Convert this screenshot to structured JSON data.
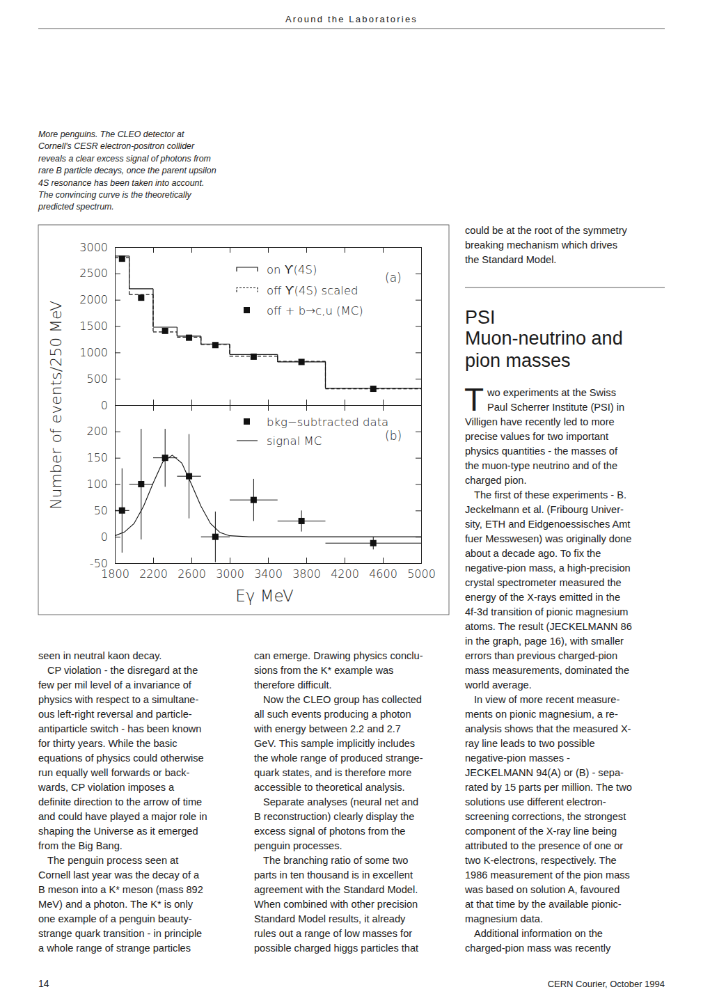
{
  "header": {
    "title": "Around the Laboratories"
  },
  "caption": [
    "More penguins. The CLEO detector at",
    "Cornell's CESR electron-positron collider",
    "reveals a clear excess signal of photons from",
    "rare B particle decays, once the parent upsilon",
    "4S resonance has been taken into account.",
    "The convincing curve is the theoretically",
    "predicted spectrum."
  ],
  "chart_data": [
    {
      "type": "line",
      "bins": [
        1800,
        1950,
        2200,
        2450,
        2700,
        3000,
        3500,
        4000,
        5000
      ],
      "xlim": [
        1800,
        5000
      ],
      "xticks": [
        1800,
        2200,
        2600,
        3000,
        3400,
        3800,
        4200,
        4600,
        5000
      ],
      "ylim": [
        0,
        3000
      ],
      "yticks": [
        0,
        500,
        1000,
        1500,
        2000,
        2500,
        3000
      ],
      "ylabel": "Number of events/250 MeV",
      "annotation": "(a)",
      "legend": "upper right",
      "tick_labels": "y",
      "series": [
        {
          "name": "on ϒ(4S)",
          "type": "step",
          "line_style": "solid",
          "color": "#111111",
          "values": [
            2830,
            2210,
            1480,
            1310,
            1160,
            960,
            820,
            320
          ]
        },
        {
          "name": "off ϒ(4S) scaled",
          "type": "step",
          "line_style": "dashed",
          "color": "#111111",
          "values": [
            2800,
            2100,
            1390,
            1290,
            1150,
            930,
            830,
            310
          ]
        },
        {
          "name": "off + b→c,u (MC)",
          "type": "scatter",
          "marker": "square",
          "color": "#111111",
          "values": [
            2780,
            2040,
            1410,
            1280,
            1140,
            920,
            820,
            310
          ]
        }
      ]
    },
    {
      "type": "scatter",
      "bins": [
        1800,
        1950,
        2200,
        2450,
        2700,
        3000,
        3500,
        4000,
        5000
      ],
      "xlim": [
        1800,
        5000
      ],
      "xticks": [
        1800,
        2200,
        2600,
        3000,
        3400,
        3800,
        4200,
        4600,
        5000
      ],
      "ylim": [
        -50,
        250
      ],
      "yticks": [
        -50,
        0,
        50,
        100,
        150,
        200
      ],
      "xlabel": "Eγ MeV",
      "annotation": "(b)",
      "legend": "upper right",
      "series": [
        {
          "name": "bkg−subtracted data",
          "type": "scatter",
          "marker": "square",
          "color": "#111111",
          "values": [
            50,
            100,
            150,
            115,
            0,
            70,
            30,
            -12
          ],
          "errors": [
            80,
            105,
            55,
            80,
            48,
            40,
            20,
            12
          ]
        },
        {
          "name": "signal MC",
          "type": "line",
          "line_style": "solid",
          "color": "#111111",
          "x": [
            1800,
            1900,
            2000,
            2100,
            2200,
            2300,
            2400,
            2500,
            2600,
            2700,
            2800,
            2900,
            3000,
            3200,
            5000
          ],
          "values": [
            2,
            9,
            25,
            58,
            102,
            142,
            155,
            140,
            100,
            58,
            25,
            8,
            2,
            0,
            0
          ]
        }
      ]
    }
  ],
  "columns": [
    {
      "paragraphs": [
        {
          "lines": [
            "seen in neutral kaon decay."
          ]
        },
        {
          "lines": [
            "CP violation - the disregard at the",
            "few per mil level of a invariance of",
            "physics with respect to a simultane-",
            "ous left-right reversal and particle-",
            "antiparticle switch - has been known",
            "for thirty years. While the basic",
            "equations of physics could otherwise",
            "run equally well forwards or back-",
            "wards, CP violation imposes a",
            "definite direction to the arrow of time",
            "and could have played a major role in",
            "shaping the Universe as it emerged",
            "from the Big Bang."
          ]
        },
        {
          "lines": [
            "The penguin process seen at",
            "Cornell last year was the decay of a",
            "B meson into a K* meson (mass 892",
            "MeV) and a photon. The K* is only",
            "one example of a penguin beauty-",
            "strange quark transition - in principle",
            "a whole range of strange particles"
          ]
        }
      ]
    },
    {
      "paragraphs": [
        {
          "lines": [
            "can emerge. Drawing physics conclu-",
            "sions from the K* example was",
            "therefore difficult."
          ]
        },
        {
          "lines": [
            "Now the CLEO group has collected",
            "all such events producing a photon",
            "with energy between 2.2 and 2.7",
            "GeV. This sample implicitly includes",
            "the whole range of produced strange-",
            "quark states, and is therefore more",
            "accessible to theoretical analysis."
          ]
        },
        {
          "lines": [
            "Separate analyses (neural net and",
            "B reconstruction) clearly display the",
            "excess signal of photons from the",
            "penguin processes."
          ]
        },
        {
          "lines": [
            "The branching ratio of some two",
            "parts in ten thousand is in excellent",
            "agreement with the Standard Model.",
            "When combined with other precision",
            "Standard Model results, it already",
            "rules out a range of low masses for",
            "possible charged higgs particles that"
          ]
        }
      ]
    },
    {
      "paragraphs": [
        {
          "lines": [
            "could be at the root of the symmetry",
            "breaking mechanism which drives",
            "the Standard Model."
          ]
        }
      ],
      "article": {
        "headline": [
          "PSI",
          "Muon-neutrino and",
          "pion masses"
        ],
        "drop_cap": "T",
        "paragraphs": [
          {
            "lines": [
              "wo experiments at the Swiss",
              "Paul Scherrer Institute (PSI) in",
              "Villigen have recently led to more",
              "precise values for two important",
              "physics quantities - the masses of",
              "the muon-type neutrino and of the",
              "charged pion."
            ]
          },
          {
            "lines": [
              "The first of these experiments - B.",
              "Jeckelmann et al. (Fribourg Univer-",
              "sity, ETH and Eidgenoessisches Amt",
              "fuer Messwesen) was originally done",
              "about a decade ago. To fix the",
              "negative-pion mass, a high-precision",
              "crystal spectrometer measured the",
              "energy of the X-rays emitted in the",
              "4f-3d transition of pionic magnesium",
              "atoms. The result (JECKELMANN 86",
              "in the graph, page 16), with smaller",
              "errors than  previous charged-pion",
              "mass measurements, dominated the",
              "world average."
            ]
          },
          {
            "lines": [
              "In view of more recent measure-",
              "ments on pionic magnesium, a re-",
              "analysis shows that the measured X-",
              "ray line leads to two possible",
              "negative-pion masses -",
              "JECKELMANN 94(A) or (B) - sepa-",
              "rated by 15 parts per million. The two",
              "solutions use different electron-",
              "screening corrections, the strongest",
              "component of the X-ray line being",
              "attributed to the presence of one or",
              "two K-electrons, respectively. The",
              "1986 measurement of the pion mass",
              "was based on solution A,  favoured",
              "at that time by the available pionic-",
              "magnesium data."
            ]
          },
          {
            "lines": [
              "Additional information on the",
              "charged-pion mass was recently"
            ]
          }
        ]
      }
    }
  ],
  "footer": {
    "page": "14",
    "source": "CERN Courier, October 1994"
  }
}
